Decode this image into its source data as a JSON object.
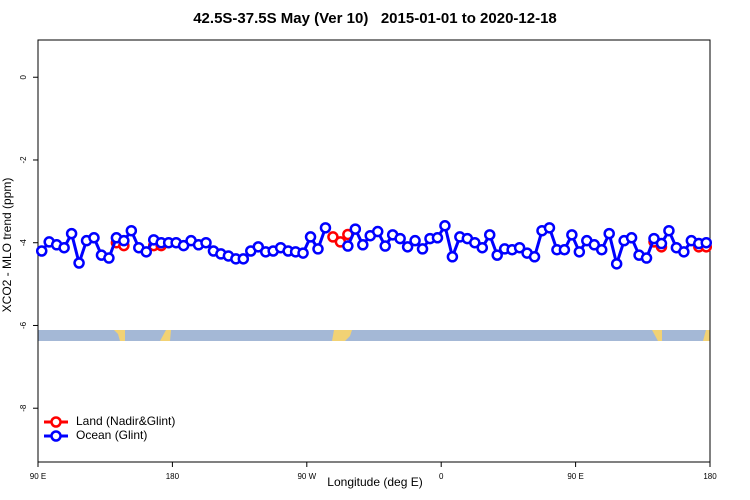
{
  "chart_data": {
    "type": "line",
    "title": "42.5S-37.5S May (Ver 10)   2015-01-01 to 2020-12-18",
    "x_label": "Longitude (deg E)",
    "y_label": "XCO2 - MLO trend (ppm)",
    "xlim": [
      90,
      540
    ],
    "ylim": [
      -9.3,
      0.9
    ],
    "xticks": [
      {
        "value": 90,
        "label": "90 E"
      },
      180,
      {
        "value": 270,
        "label": "90 W"
      },
      {
        "value": 360,
        "label": "0"
      },
      {
        "value": 450,
        "label": "90 E"
      },
      {
        "value": 540,
        "label": "180"
      }
    ],
    "yticks": [
      0,
      -2,
      -4,
      -6,
      -8
    ],
    "legend": "bottom-left",
    "series": [
      {
        "name": "Land (Nadir&Glint)",
        "color": "#ff0000",
        "x": [
          142.5,
          147.5,
          157.5,
          167.5,
          172.5,
          230,
          287.5,
          292.5,
          297.5,
          400,
          502.5,
          507.5,
          520,
          532.5,
          537.5
        ],
        "values": [
          -4.0,
          -4.07,
          null,
          -4.07,
          -4.07,
          null,
          -3.86,
          -3.98,
          -3.8,
          null,
          -3.98,
          -4.1,
          null,
          -4.1,
          -4.1
        ]
      },
      {
        "name": "Ocean (Glint)",
        "color": "#0000ff",
        "x": [
          92.5,
          97.5,
          102.5,
          107.5,
          112.5,
          117.5,
          122.5,
          127.5,
          132.5,
          137.5,
          142.5,
          147.5,
          152.5,
          157.5,
          162.5,
          167.5,
          172.5,
          177.5,
          182.5,
          187.5,
          192.5,
          197.5,
          202.5,
          207.5,
          212.5,
          217.5,
          222.5,
          227.5,
          232.5,
          237.5,
          242.5,
          247.5,
          252.5,
          257.5,
          262.5,
          267.5,
          272.5,
          277.5,
          282.5,
          287.5,
          292.5,
          297.5,
          302.5,
          307.5,
          312.5,
          317.5,
          322.5,
          327.5,
          332.5,
          337.5,
          342.5,
          347.5,
          352.5,
          357.5,
          362.5,
          367.5,
          372.5,
          377.5,
          382.5,
          387.5,
          392.5,
          397.5,
          402.5,
          407.5,
          412.5,
          417.5,
          422.5,
          427.5,
          432.5,
          437.5,
          442.5,
          447.5,
          452.5,
          457.5,
          462.5,
          467.5,
          472.5,
          477.5,
          482.5,
          487.5,
          492.5,
          497.5,
          502.5,
          507.5,
          512.5,
          517.5,
          522.5,
          527.5,
          532.5,
          537.5
        ],
        "values": [
          -4.2,
          -3.98,
          -4.05,
          -4.12,
          -3.78,
          -4.49,
          -3.95,
          -3.88,
          -4.3,
          -4.37,
          -3.88,
          -3.95,
          -3.71,
          -4.12,
          -4.22,
          -3.93,
          -4.0,
          -4.0,
          -4.0,
          -4.07,
          -3.95,
          -4.05,
          -4.0,
          -4.2,
          -4.27,
          -4.32,
          -4.39,
          -4.39,
          -4.2,
          -4.1,
          -4.22,
          -4.2,
          -4.12,
          -4.2,
          -4.22,
          -4.25,
          -3.86,
          -4.15,
          -3.64,
          null,
          null,
          -4.08,
          -3.67,
          -4.05,
          -3.83,
          -3.73,
          -4.08,
          -3.81,
          -3.9,
          -4.1,
          -3.95,
          -4.15,
          -3.9,
          -3.88,
          -3.59,
          -4.34,
          -3.86,
          -3.9,
          -4.0,
          -4.12,
          -3.81,
          -4.3,
          -4.15,
          -4.17,
          -4.12,
          -4.25,
          -4.34,
          -3.71,
          -3.64,
          -4.17,
          -4.17,
          -3.81,
          -4.22,
          -3.95,
          -4.05,
          -4.17,
          -3.78,
          -4.51,
          -3.95,
          -3.88,
          -4.3,
          -4.37,
          -3.9,
          -4.02,
          -3.71,
          -4.12,
          -4.22,
          -3.95,
          -4.02,
          -4.0
        ]
      }
    ]
  }
}
